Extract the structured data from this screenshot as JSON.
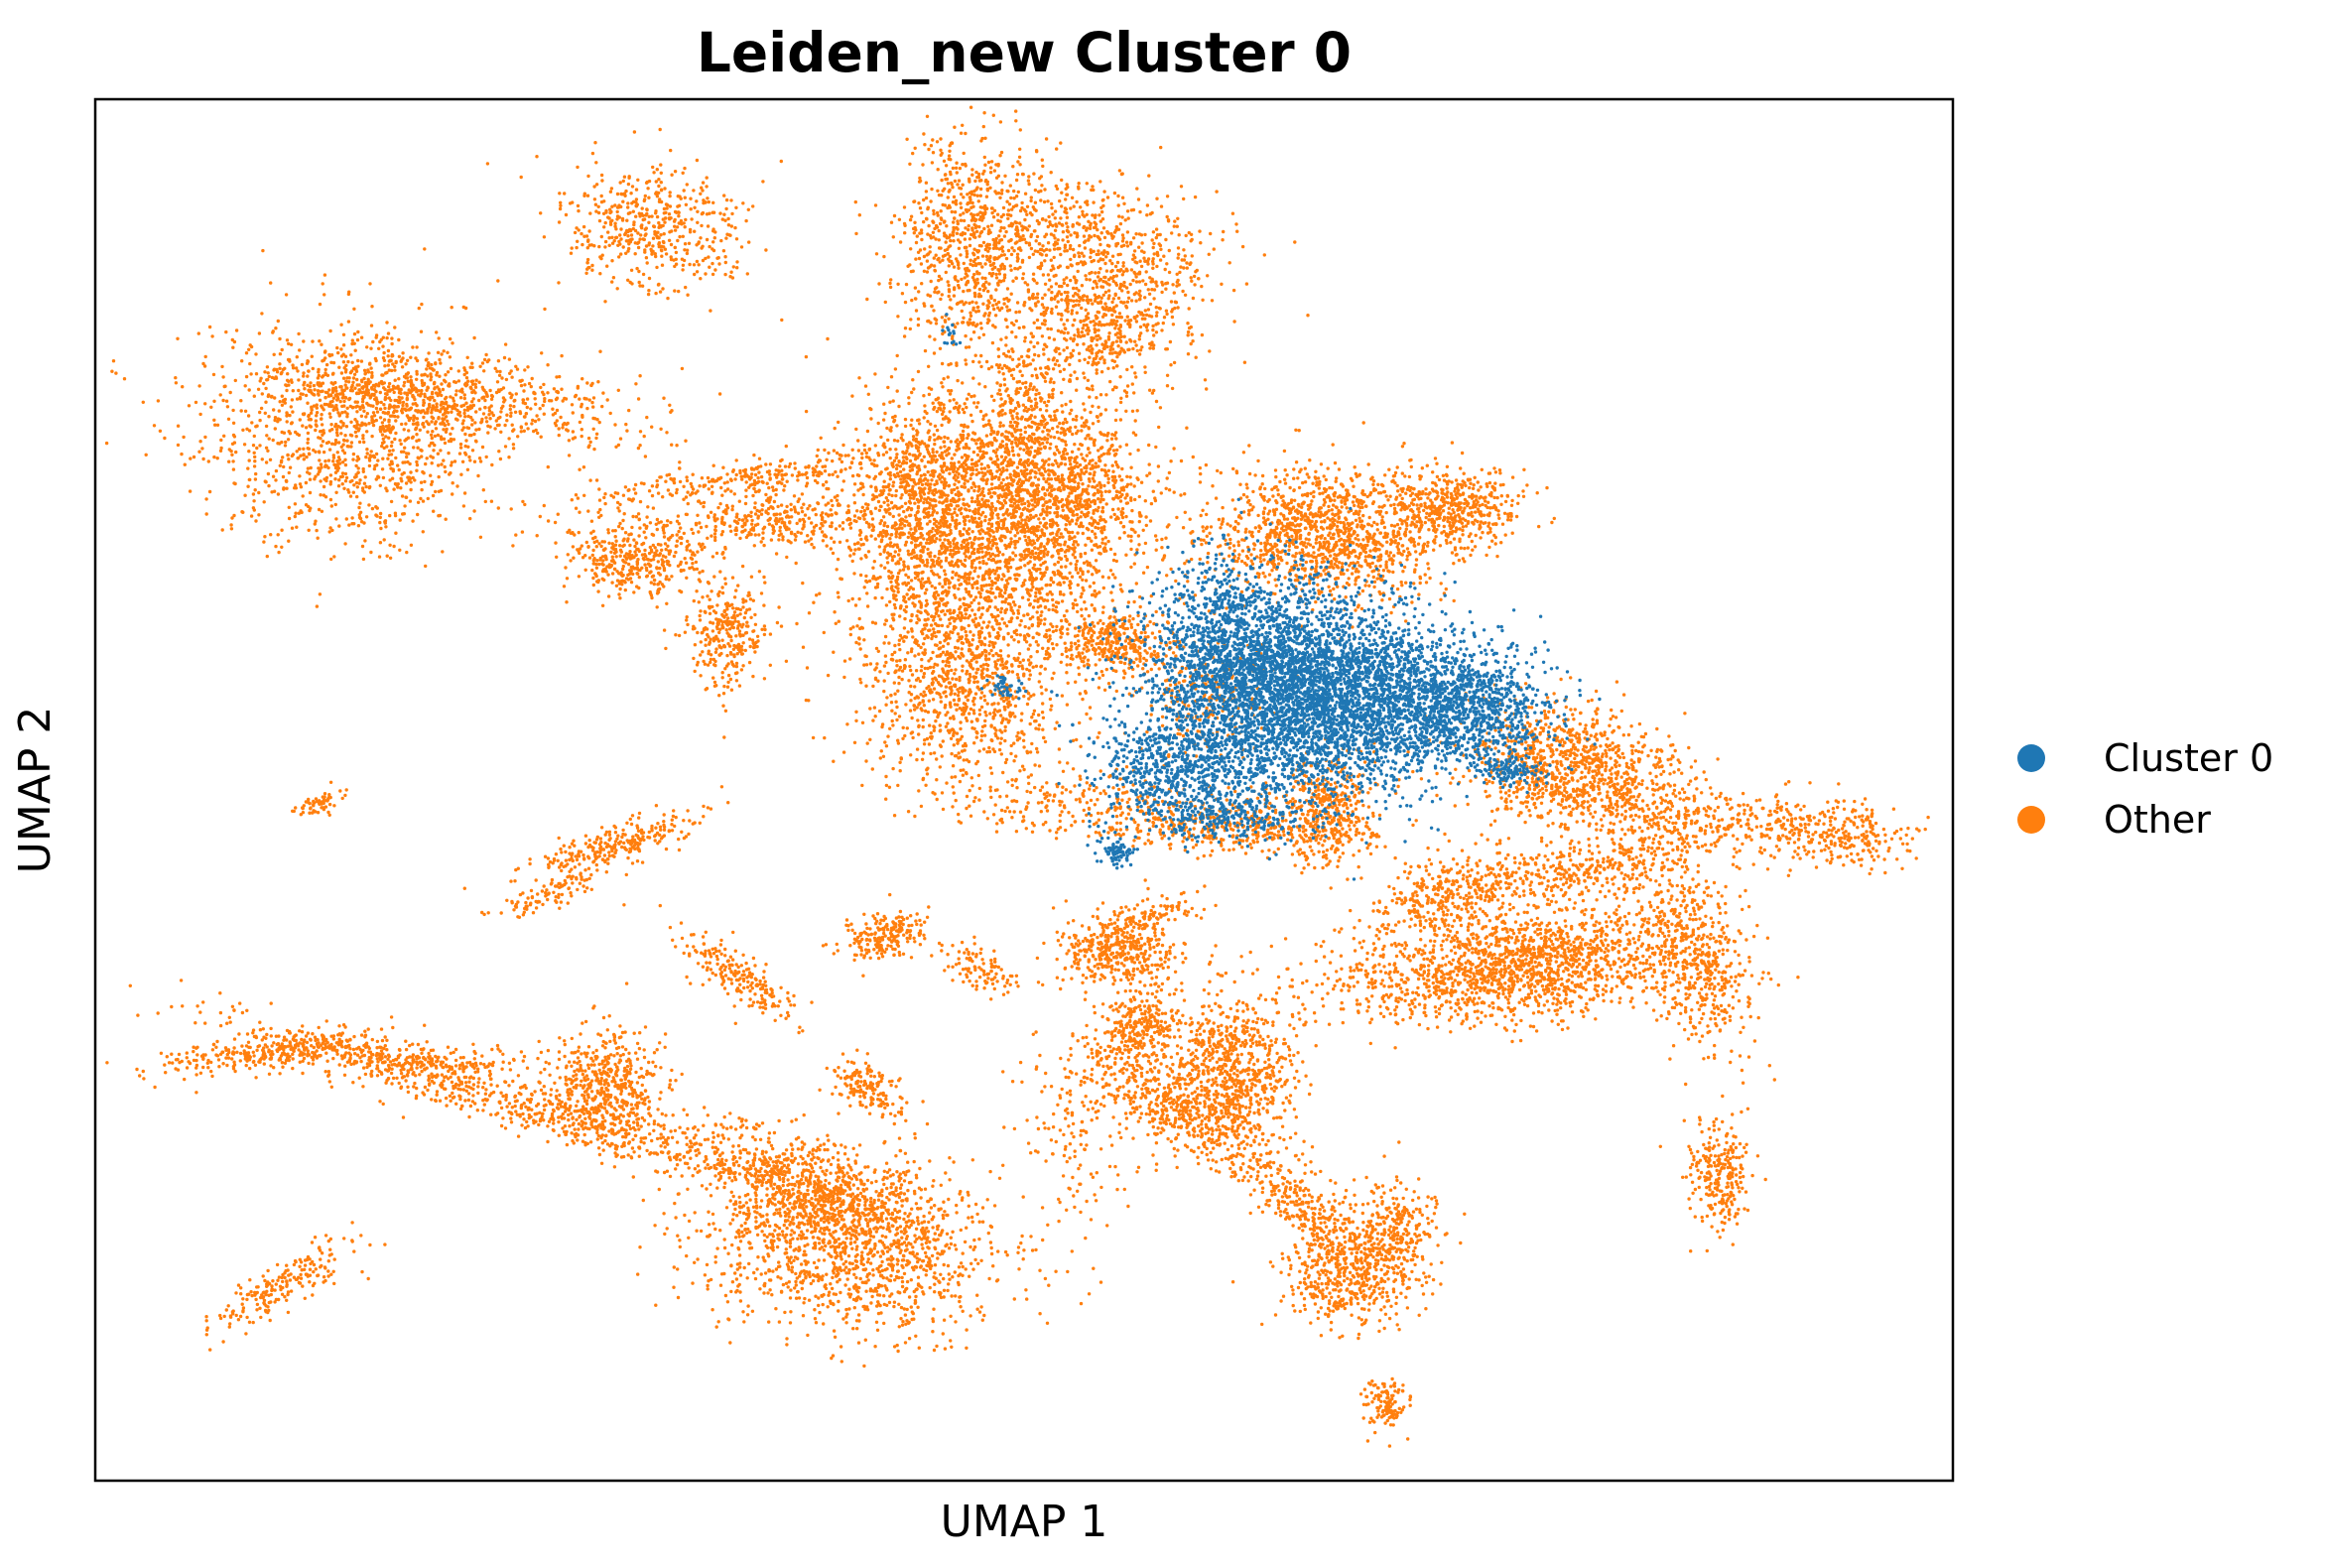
{
  "chart_data": {
    "type": "scatter",
    "title": "Leiden_new Cluster 0",
    "xlabel": "UMAP 1",
    "ylabel": "UMAP 2",
    "xlim": [
      0,
      100
    ],
    "ylim": [
      0,
      100
    ],
    "grid": false,
    "ticks": false,
    "legend": {
      "placement": "right",
      "entries": [
        {
          "label": "Cluster 0",
          "color": "#1f77b4"
        },
        {
          "label": "Other",
          "color": "#ff7f0e"
        }
      ]
    },
    "series": [
      {
        "name": "Other",
        "color": "#ff7f0e",
        "draw_order": 1,
        "clusters": [
          {
            "cx": 30.0,
            "cy": 90.5,
            "sx": 2.4,
            "sy": 2.2,
            "n": 500,
            "rot": -10
          },
          {
            "cx": 47.0,
            "cy": 89.5,
            "sx": 1.7,
            "sy": 4.5,
            "n": 700,
            "rot": 0
          },
          {
            "cx": 53.0,
            "cy": 90.0,
            "sx": 4.0,
            "sy": 2.5,
            "n": 600,
            "rot": -15
          },
          {
            "cx": 54.0,
            "cy": 84.0,
            "sx": 2.4,
            "sy": 2.6,
            "n": 600,
            "rot": 0
          },
          {
            "cx": 14.0,
            "cy": 75.5,
            "sx": 4.0,
            "sy": 3.8,
            "n": 1100,
            "rot": 25
          },
          {
            "cx": 18.0,
            "cy": 78.5,
            "sx": 5.5,
            "sy": 1.6,
            "n": 800,
            "rot": -8
          },
          {
            "cx": 48.0,
            "cy": 70.0,
            "sx": 3.6,
            "sy": 5.2,
            "n": 2200,
            "rot": 0
          },
          {
            "cx": 44.0,
            "cy": 70.0,
            "sx": 1.8,
            "sy": 3.5,
            "n": 500,
            "rot": 0
          },
          {
            "cx": 52.5,
            "cy": 72.0,
            "sx": 2.0,
            "sy": 2.5,
            "n": 500,
            "rot": 0
          },
          {
            "cx": 46.5,
            "cy": 57.5,
            "sx": 2.6,
            "sy": 3.5,
            "n": 800,
            "rot": 0
          },
          {
            "cx": 55.0,
            "cy": 60.5,
            "sx": 1.5,
            "sy": 1.0,
            "n": 300,
            "rot": 0
          },
          {
            "cx": 66.0,
            "cy": 68.5,
            "sx": 3.0,
            "sy": 2.2,
            "n": 1200,
            "rot": -15
          },
          {
            "cx": 73.0,
            "cy": 70.5,
            "sx": 1.8,
            "sy": 1.5,
            "n": 500,
            "rot": 0
          },
          {
            "cx": 29.0,
            "cy": 67.0,
            "sx": 1.8,
            "sy": 1.5,
            "n": 400,
            "rot": 0
          },
          {
            "cx": 34.0,
            "cy": 61.5,
            "sx": 1.2,
            "sy": 2.0,
            "n": 300,
            "rot": 0
          },
          {
            "cx": 36.5,
            "cy": 69.5,
            "sx": 2.5,
            "sy": 1.0,
            "n": 300,
            "rot": 10
          },
          {
            "cx": 66.5,
            "cy": 48.5,
            "sx": 1.2,
            "sy": 2.0,
            "n": 400,
            "rot": 0
          },
          {
            "cx": 61.0,
            "cy": 47.5,
            "sx": 3.5,
            "sy": 1.0,
            "n": 400,
            "rot": 0
          },
          {
            "cx": 79.5,
            "cy": 51.5,
            "sx": 3.0,
            "sy": 2.2,
            "n": 1000,
            "rot": -20
          },
          {
            "cx": 93.0,
            "cy": 47.0,
            "sx": 2.8,
            "sy": 1.2,
            "n": 350,
            "rot": -10
          },
          {
            "cx": 74.0,
            "cy": 37.0,
            "sx": 4.5,
            "sy": 1.8,
            "n": 900,
            "rot": 10
          },
          {
            "cx": 79.0,
            "cy": 37.5,
            "sx": 3.0,
            "sy": 2.0,
            "n": 700,
            "rot": 20
          },
          {
            "cx": 86.0,
            "cy": 38.0,
            "sx": 1.5,
            "sy": 3.5,
            "n": 600,
            "rot": 15
          },
          {
            "cx": 73.0,
            "cy": 42.5,
            "sx": 2.5,
            "sy": 1.5,
            "n": 400,
            "rot": 30
          },
          {
            "cx": 81.0,
            "cy": 44.5,
            "sx": 3.0,
            "sy": 1.0,
            "n": 300,
            "rot": 15
          },
          {
            "cx": 55.0,
            "cy": 38.5,
            "sx": 1.6,
            "sy": 1.3,
            "n": 400,
            "rot": 0
          },
          {
            "cx": 56.0,
            "cy": 32.5,
            "sx": 1.0,
            "sy": 2.0,
            "n": 300,
            "rot": -20
          },
          {
            "cx": 58.0,
            "cy": 27.0,
            "sx": 3.0,
            "sy": 1.2,
            "n": 400,
            "rot": -40
          },
          {
            "cx": 61.0,
            "cy": 29.5,
            "sx": 1.8,
            "sy": 2.8,
            "n": 800,
            "rot": 0
          },
          {
            "cx": 65.0,
            "cy": 20.0,
            "sx": 2.8,
            "sy": 1.0,
            "n": 300,
            "rot": -50
          },
          {
            "cx": 67.5,
            "cy": 15.0,
            "sx": 1.8,
            "sy": 2.0,
            "n": 500,
            "rot": 0
          },
          {
            "cx": 70.0,
            "cy": 18.0,
            "sx": 1.2,
            "sy": 1.8,
            "n": 250,
            "rot": 0
          },
          {
            "cx": 69.5,
            "cy": 5.5,
            "sx": 0.6,
            "sy": 1.0,
            "n": 120,
            "rot": 0
          },
          {
            "cx": 87.5,
            "cy": 22.0,
            "sx": 0.8,
            "sy": 2.0,
            "n": 250,
            "rot": 0
          },
          {
            "cx": 40.5,
            "cy": 17.5,
            "sx": 4.0,
            "sy": 3.2,
            "n": 1500,
            "rot": -20
          },
          {
            "cx": 38.0,
            "cy": 21.5,
            "sx": 3.5,
            "sy": 1.5,
            "n": 600,
            "rot": -30
          },
          {
            "cx": 27.5,
            "cy": 28.5,
            "sx": 1.5,
            "sy": 2.0,
            "n": 500,
            "rot": 0
          },
          {
            "cx": 22.0,
            "cy": 27.5,
            "sx": 8.0,
            "sy": 0.9,
            "n": 700,
            "rot": -22
          },
          {
            "cx": 9.0,
            "cy": 31.0,
            "sx": 3.0,
            "sy": 0.6,
            "n": 300,
            "rot": 10
          },
          {
            "cx": 17.5,
            "cy": 30.5,
            "sx": 3.5,
            "sy": 0.7,
            "n": 200,
            "rot": -5
          },
          {
            "cx": 10.5,
            "cy": 14.5,
            "sx": 2.5,
            "sy": 0.7,
            "n": 200,
            "rot": 40
          },
          {
            "cx": 28.0,
            "cy": 46.0,
            "sx": 2.5,
            "sy": 0.6,
            "n": 250,
            "rot": 25
          },
          {
            "cx": 24.5,
            "cy": 42.5,
            "sx": 1.5,
            "sy": 0.5,
            "n": 100,
            "rot": 30
          },
          {
            "cx": 34.5,
            "cy": 36.5,
            "sx": 2.2,
            "sy": 0.7,
            "n": 200,
            "rot": -45
          },
          {
            "cx": 42.5,
            "cy": 39.5,
            "sx": 1.2,
            "sy": 0.8,
            "n": 200,
            "rot": 20
          },
          {
            "cx": 47.5,
            "cy": 37.0,
            "sx": 1.2,
            "sy": 0.7,
            "n": 100,
            "rot": -40
          },
          {
            "cx": 41.5,
            "cy": 28.5,
            "sx": 1.2,
            "sy": 0.7,
            "n": 150,
            "rot": -45
          },
          {
            "cx": 12.0,
            "cy": 49.0,
            "sx": 0.8,
            "sy": 0.3,
            "n": 60,
            "rot": 30
          },
          {
            "cx": 35.0,
            "cy": 72.5,
            "sx": 5.0,
            "sy": 0.7,
            "n": 300,
            "rot": 10
          },
          {
            "cx": 50.0,
            "cy": 64.0,
            "sx": 5.0,
            "sy": 5.0,
            "n": 600,
            "rot": 0
          },
          {
            "cx": 53.5,
            "cy": 49.0,
            "sx": 4.0,
            "sy": 1.5,
            "n": 250,
            "rot": 0
          },
          {
            "cx": 85.5,
            "cy": 48.0,
            "sx": 2.5,
            "sy": 1.5,
            "n": 250,
            "rot": -10
          },
          {
            "cx": 57.0,
            "cy": 41.0,
            "sx": 1.5,
            "sy": 0.6,
            "n": 100,
            "rot": 20
          },
          {
            "cx": 52.5,
            "cy": 24.5,
            "sx": 1.5,
            "sy": 4.5,
            "n": 150,
            "rot": 0
          },
          {
            "cx": 50.0,
            "cy": 77.5,
            "sx": 1.0,
            "sy": 3.0,
            "n": 150,
            "rot": 0
          },
          {
            "cx": 60.0,
            "cy": 57.0,
            "sx": 1.5,
            "sy": 2.0,
            "n": 200,
            "rot": 0
          }
        ]
      },
      {
        "name": "Cluster 0",
        "color": "#1f77b4",
        "draw_order": 2,
        "clusters": [
          {
            "cx": 63.5,
            "cy": 57.5,
            "sx": 3.5,
            "sy": 3.8,
            "n": 3500,
            "rot": 0
          },
          {
            "cx": 69.0,
            "cy": 56.5,
            "sx": 3.0,
            "sy": 3.0,
            "n": 1500,
            "rot": 0
          },
          {
            "cx": 74.0,
            "cy": 56.0,
            "sx": 2.3,
            "sy": 2.0,
            "n": 900,
            "rot": -10
          },
          {
            "cx": 58.5,
            "cy": 51.5,
            "sx": 2.5,
            "sy": 2.0,
            "n": 600,
            "rot": 0
          },
          {
            "cx": 60.5,
            "cy": 62.5,
            "sx": 1.5,
            "sy": 2.5,
            "n": 300,
            "rot": 0
          },
          {
            "cx": 61.0,
            "cy": 48.0,
            "sx": 2.5,
            "sy": 1.0,
            "n": 250,
            "rot": 0
          },
          {
            "cx": 76.0,
            "cy": 51.5,
            "sx": 1.0,
            "sy": 0.6,
            "n": 120,
            "rot": 0
          },
          {
            "cx": 55.0,
            "cy": 45.5,
            "sx": 0.5,
            "sy": 0.5,
            "n": 80,
            "rot": 0
          },
          {
            "cx": 49.0,
            "cy": 57.5,
            "sx": 0.5,
            "sy": 0.4,
            "n": 40,
            "rot": 0
          },
          {
            "cx": 46.0,
            "cy": 83.0,
            "sx": 0.3,
            "sy": 0.6,
            "n": 15,
            "rot": 0
          }
        ]
      }
    ]
  }
}
